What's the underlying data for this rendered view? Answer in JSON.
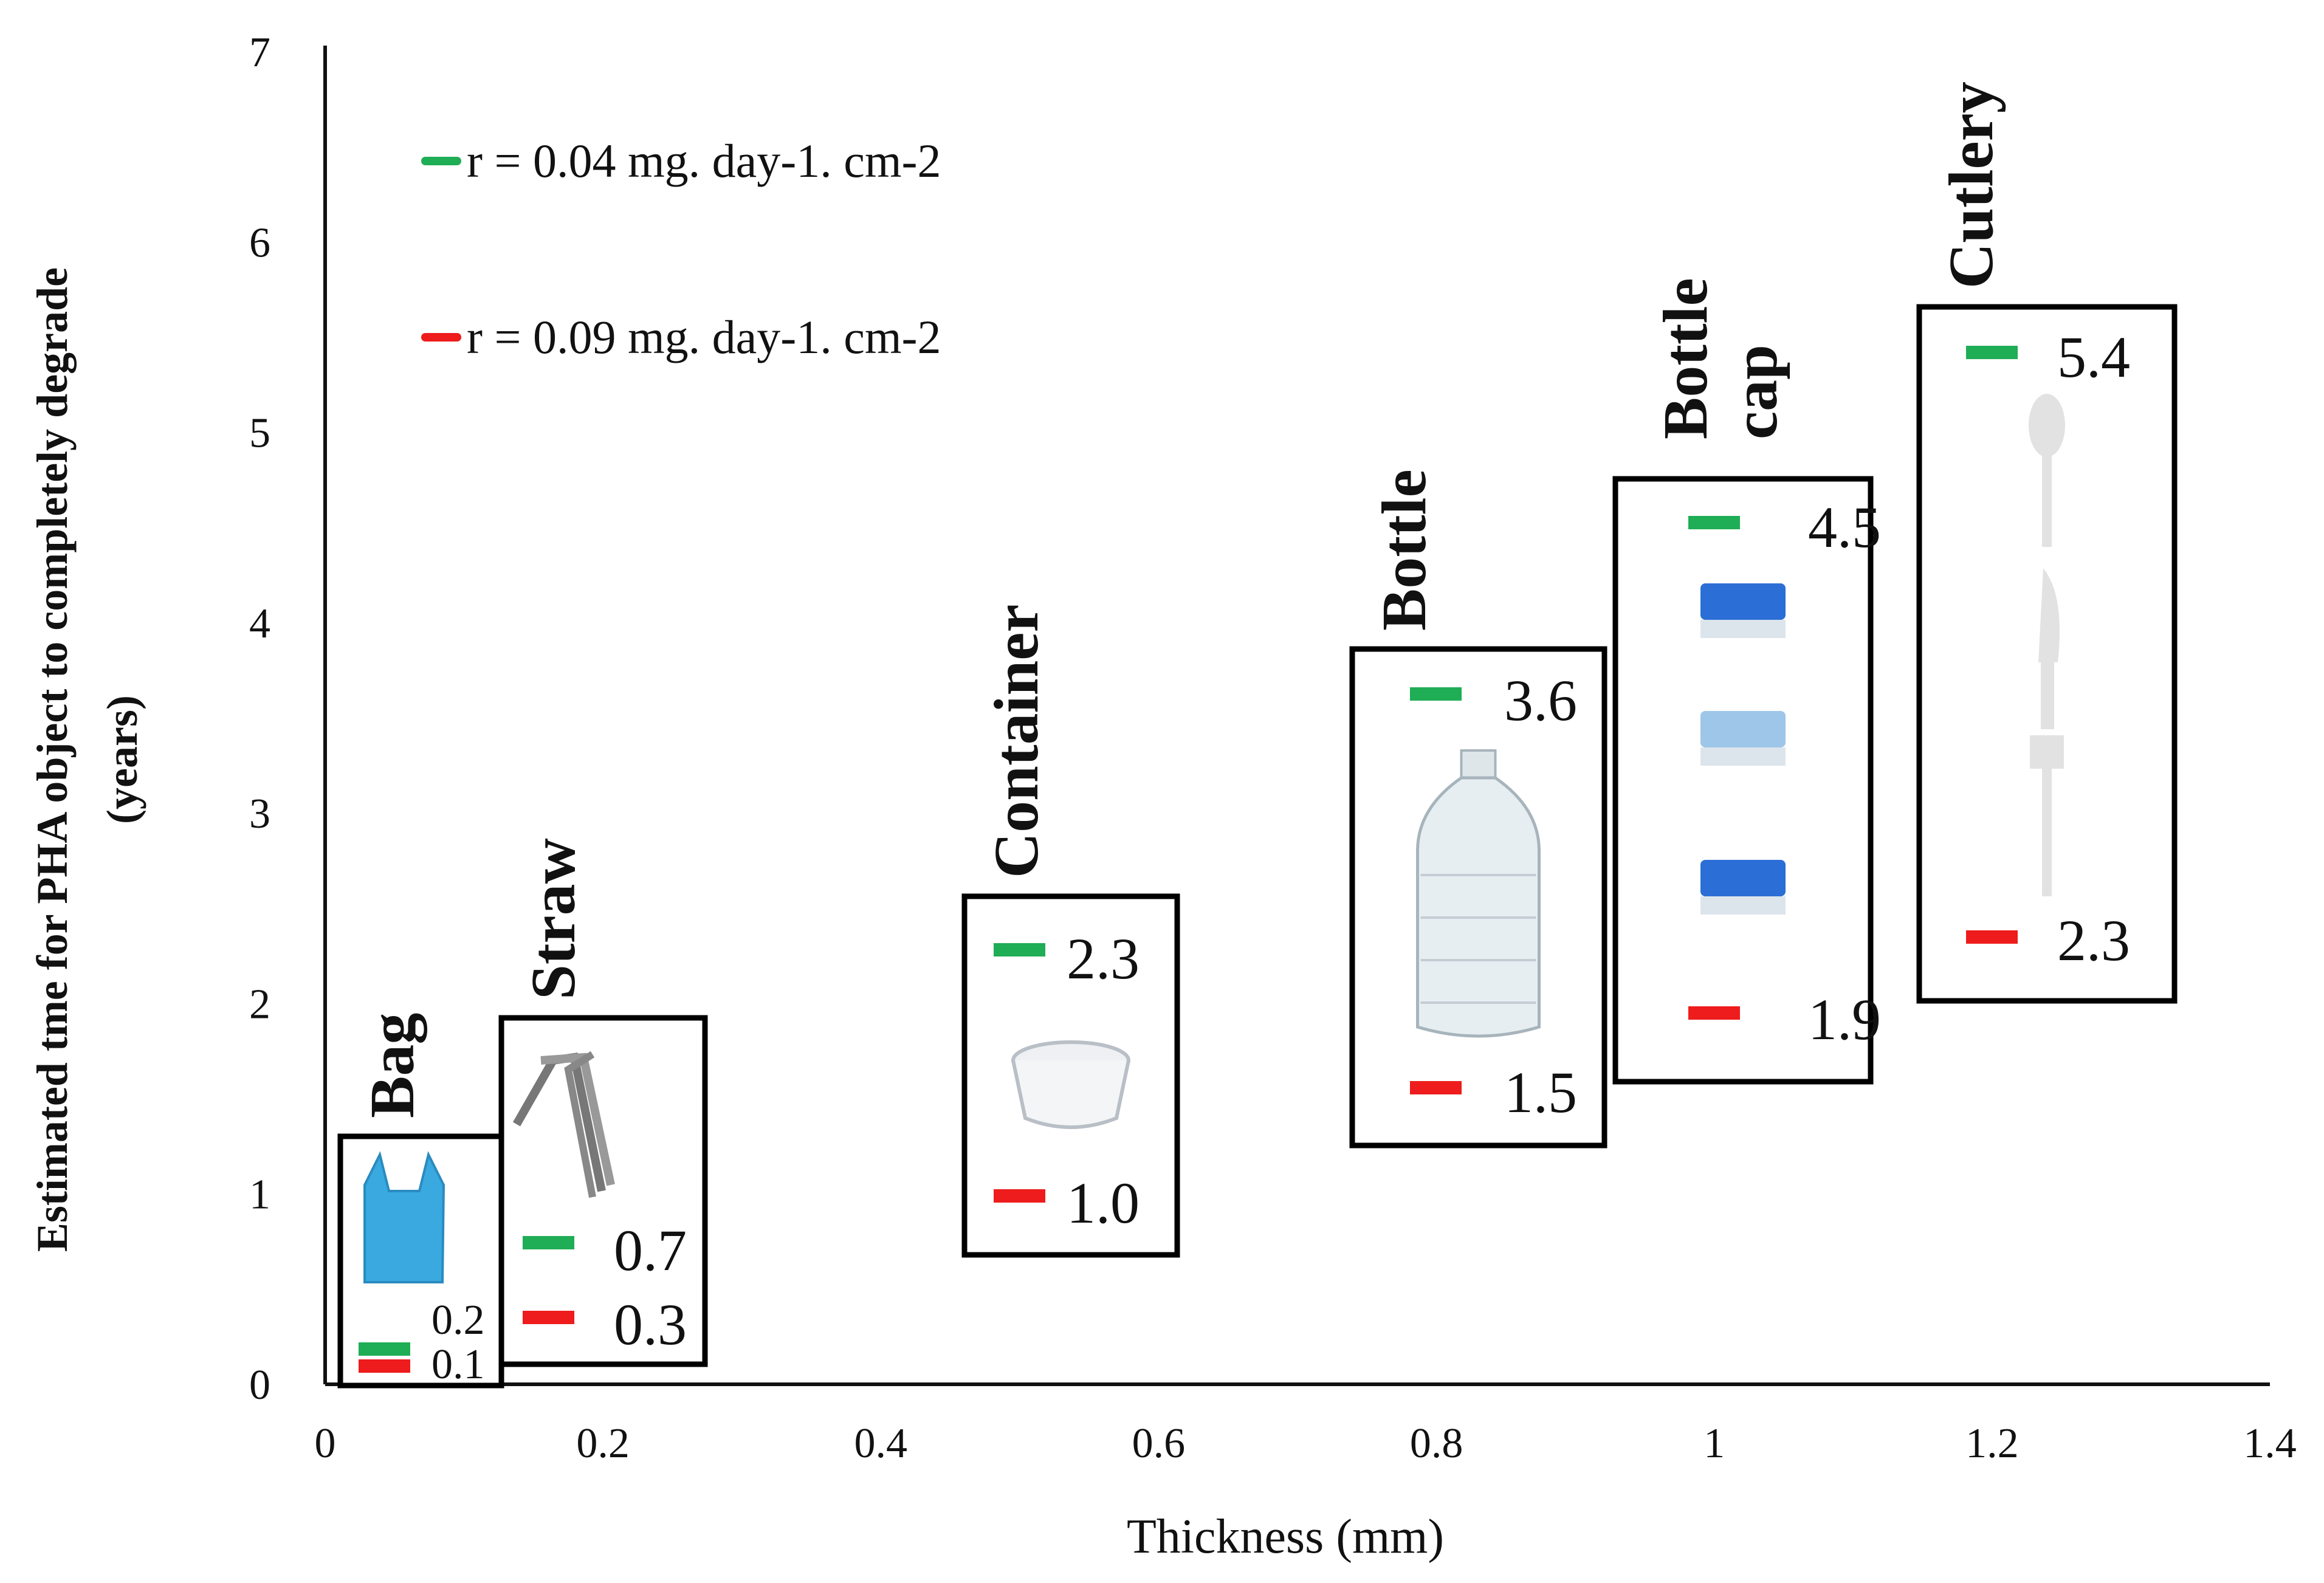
{
  "chart_data": {
    "type": "scatter",
    "title": "",
    "xlabel": "Thickness (mm)",
    "ylabel": [
      "Estimated tme for PHA object to completely degrade",
      "(years)"
    ],
    "xlim": [
      0,
      1.4
    ],
    "ylim": [
      0,
      7
    ],
    "x_ticks": [
      "0",
      "0.2",
      "0.4",
      "0.6",
      "0.8",
      "1",
      "1.2",
      "1.4"
    ],
    "y_ticks": [
      "0",
      "1",
      "2",
      "3",
      "4",
      "5",
      "6",
      "7"
    ],
    "grid": false,
    "legend": {
      "placement": "top-left",
      "entries": [
        {
          "name": "r = 0.04 mg. day-1. cm-2",
          "color": "#1fad55"
        },
        {
          "name": "r = 0.09 mg. day-1. cm-2",
          "color": "#ee1c1c"
        }
      ]
    },
    "series": [
      {
        "name": "r = 0.04 mg. day-1. cm-2",
        "color": "#1fad55",
        "x": [
          0.035,
          0.16,
          0.5,
          0.8,
          1.01,
          1.23
        ],
        "values": [
          0.2,
          0.7,
          2.3,
          3.6,
          4.5,
          5.4
        ],
        "labels": [
          "0.2",
          "0.7",
          "2.3",
          "3.6",
          "4.5",
          "5.4"
        ]
      },
      {
        "name": "r = 0.09 mg. day-1. cm-2",
        "color": "#ee1c1c",
        "x": [
          0.035,
          0.16,
          0.5,
          0.8,
          1.01,
          1.23
        ],
        "values": [
          0.1,
          0.3,
          1.0,
          1.5,
          1.9,
          2.3
        ],
        "labels": [
          "0.1",
          "0.3",
          "1.0",
          "1.5",
          "1.9",
          "2.3"
        ]
      }
    ],
    "objects": [
      {
        "name": "Bag",
        "icon": "plastic-bag-icon"
      },
      {
        "name": "Straw",
        "icon": "straw-icon"
      },
      {
        "name": "Container",
        "icon": "container-icon"
      },
      {
        "name": "Bottle",
        "icon": "bottle-icon"
      },
      {
        "name": "Bottle cap",
        "icon": "bottle-cap-icon"
      },
      {
        "name": "Cutlery",
        "icon": "cutlery-icon"
      }
    ]
  }
}
